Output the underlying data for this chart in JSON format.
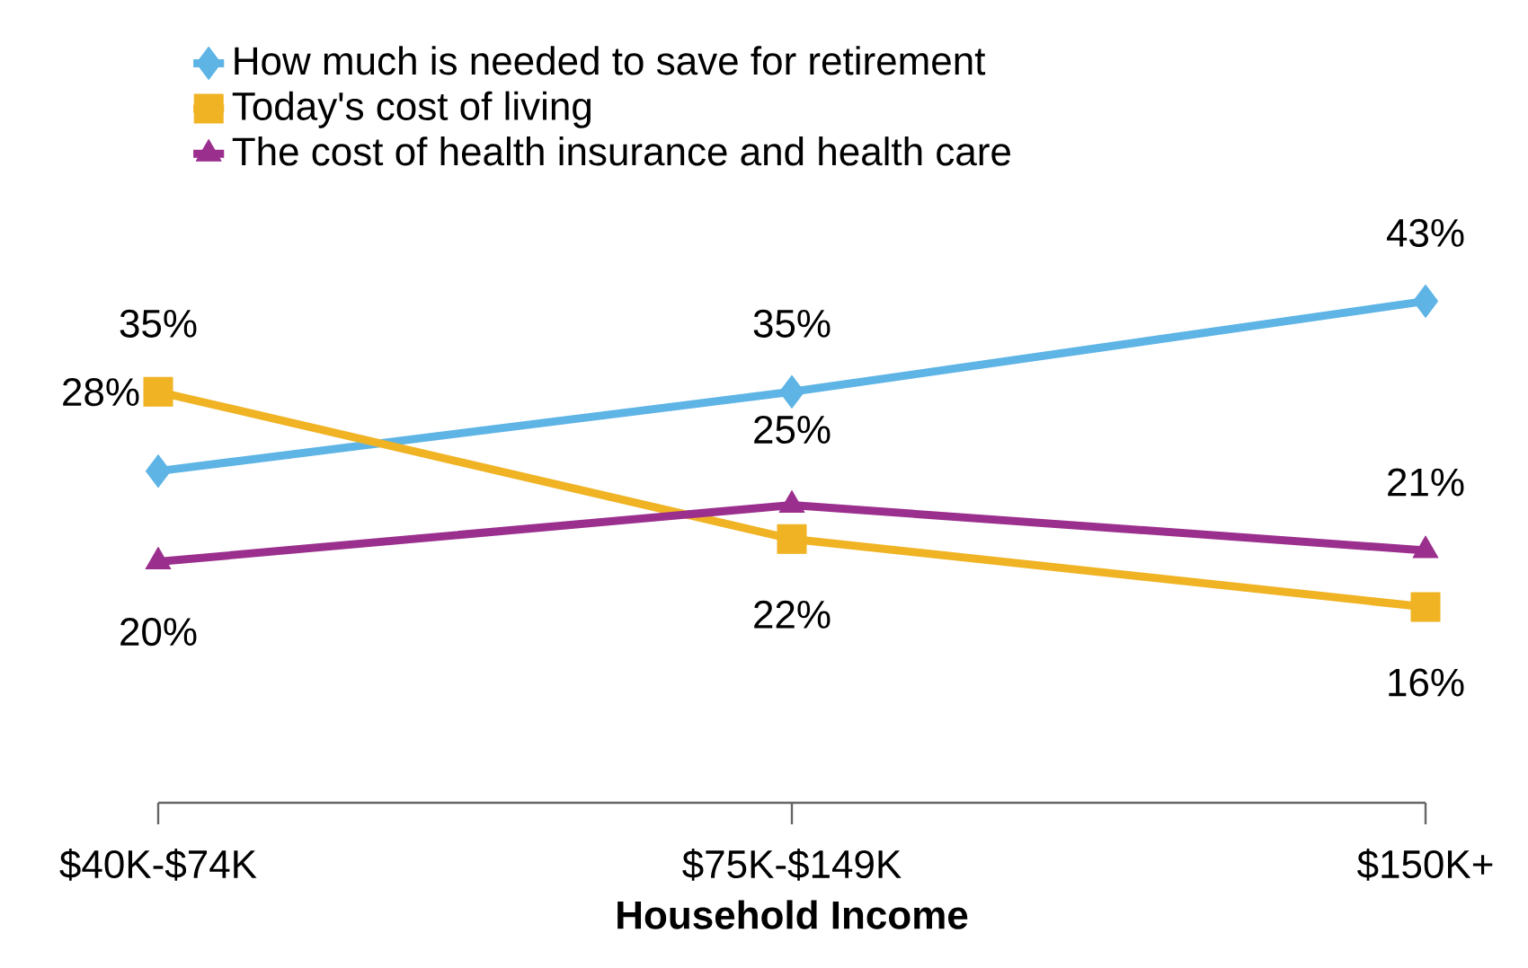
{
  "chart_data": {
    "type": "line",
    "xlabel": "Household Income",
    "categories": [
      "$40K-$74K",
      "$75K-$149K",
      "$150K+"
    ],
    "tick_labels": "x",
    "legend": "top",
    "grid": false,
    "series": [
      {
        "name": "How much is needed to save for retirement",
        "color": "#5db4e5",
        "marker": "diamond",
        "values": [
          28,
          35,
          43
        ],
        "value_labels": [
          "28%",
          "35%",
          "43%"
        ]
      },
      {
        "name": "Today's cost of living",
        "color": "#f0b323",
        "marker": "square",
        "values": [
          35,
          22,
          16
        ],
        "value_labels": [
          "35%",
          "22%",
          "16%"
        ]
      },
      {
        "name": "The cost of health insurance and health care",
        "color": "#9b2f8e",
        "marker": "triangle",
        "values": [
          20,
          25,
          21
        ],
        "value_labels": [
          "20%",
          "25%",
          "21%"
        ]
      }
    ]
  }
}
